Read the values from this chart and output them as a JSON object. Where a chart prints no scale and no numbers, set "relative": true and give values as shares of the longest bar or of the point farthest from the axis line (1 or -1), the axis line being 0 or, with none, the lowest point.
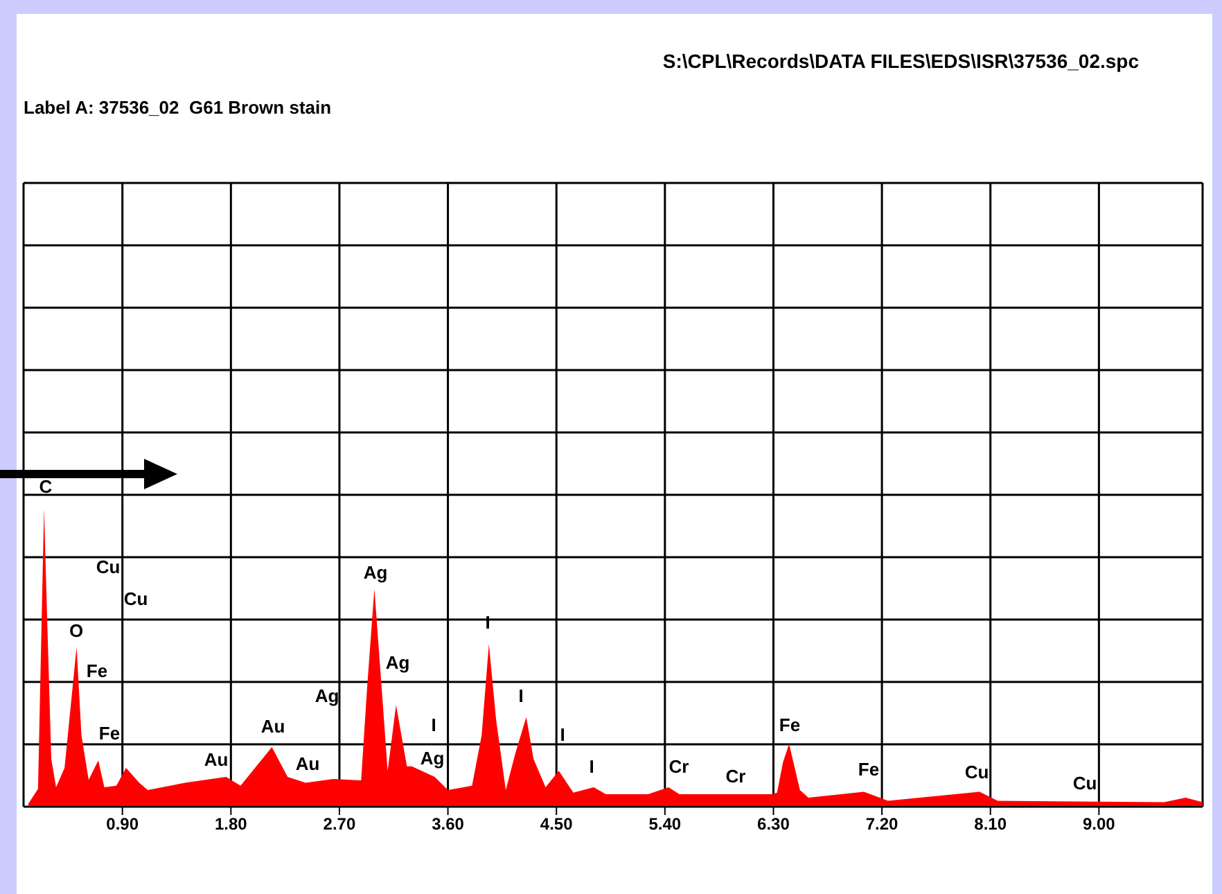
{
  "chart_data": {
    "type": "area",
    "title": "S:\\CPL\\Records\\DATA FILES\\EDS\\ISR\\37536_02.spc",
    "subtitle": "Label A: 37536_02  G61 Brown stain",
    "relative": true,
    "color": "#ff0000",
    "grid": true,
    "xlim": [
      0.08,
      9.86
    ],
    "xticks": [
      {
        "value": 0.9,
        "label": "0.90"
      },
      {
        "value": 1.8,
        "label": "1.80"
      },
      {
        "value": 2.7,
        "label": "2.70"
      },
      {
        "value": 3.6,
        "label": "3.60"
      },
      {
        "value": 4.5,
        "label": "4.50"
      },
      {
        "value": 5.4,
        "label": "5.40"
      },
      {
        "value": 6.3,
        "label": "6.30"
      },
      {
        "value": 7.2,
        "label": "7.20"
      },
      {
        "value": 8.1,
        "label": "8.10"
      },
      {
        "value": 9.0,
        "label": "9.00"
      }
    ],
    "x": [
      0.12,
      0.2,
      0.25,
      0.27,
      0.31,
      0.35,
      0.42,
      0.52,
      0.56,
      0.62,
      0.7,
      0.75,
      0.85,
      0.93,
      1.04,
      1.11,
      1.42,
      1.76,
      1.88,
      2.14,
      2.27,
      2.42,
      2.65,
      2.88,
      2.93,
      2.99,
      3.05,
      3.1,
      3.17,
      3.26,
      3.3,
      3.49,
      3.6,
      3.8,
      3.88,
      3.94,
      4.0,
      4.08,
      4.16,
      4.25,
      4.31,
      4.41,
      4.52,
      4.64,
      4.81,
      4.91,
      5.26,
      5.43,
      5.52,
      5.95,
      6.29,
      6.33,
      6.38,
      6.43,
      6.52,
      6.59,
      7.05,
      7.25,
      8.01,
      8.16,
      9.54,
      9.72,
      9.86
    ],
    "values": [
      0.01,
      0.06,
      1.0,
      0.71,
      0.16,
      0.065,
      0.13,
      0.535,
      0.24,
      0.09,
      0.155,
      0.065,
      0.07,
      0.13,
      0.08,
      0.056,
      0.08,
      0.1,
      0.07,
      0.2,
      0.1,
      0.08,
      0.093,
      0.088,
      0.4,
      0.73,
      0.4,
      0.12,
      0.34,
      0.135,
      0.135,
      0.1,
      0.056,
      0.07,
      0.24,
      0.545,
      0.29,
      0.056,
      0.18,
      0.3,
      0.16,
      0.065,
      0.12,
      0.047,
      0.065,
      0.042,
      0.042,
      0.065,
      0.042,
      0.042,
      0.042,
      0.047,
      0.15,
      0.21,
      0.056,
      0.03,
      0.05,
      0.02,
      0.05,
      0.02,
      0.015,
      0.03,
      0.015
    ],
    "annotations": [
      "C",
      "Cu",
      "Cu",
      "O",
      "Fe",
      "Fe",
      "Au",
      "Au",
      "Au",
      "Ag",
      "Ag",
      "Ag",
      "I",
      "Ag",
      "I",
      "I",
      "I",
      "I",
      "Cr",
      "Cr",
      "Fe",
      "Fe",
      "Cu",
      "Cu"
    ]
  }
}
